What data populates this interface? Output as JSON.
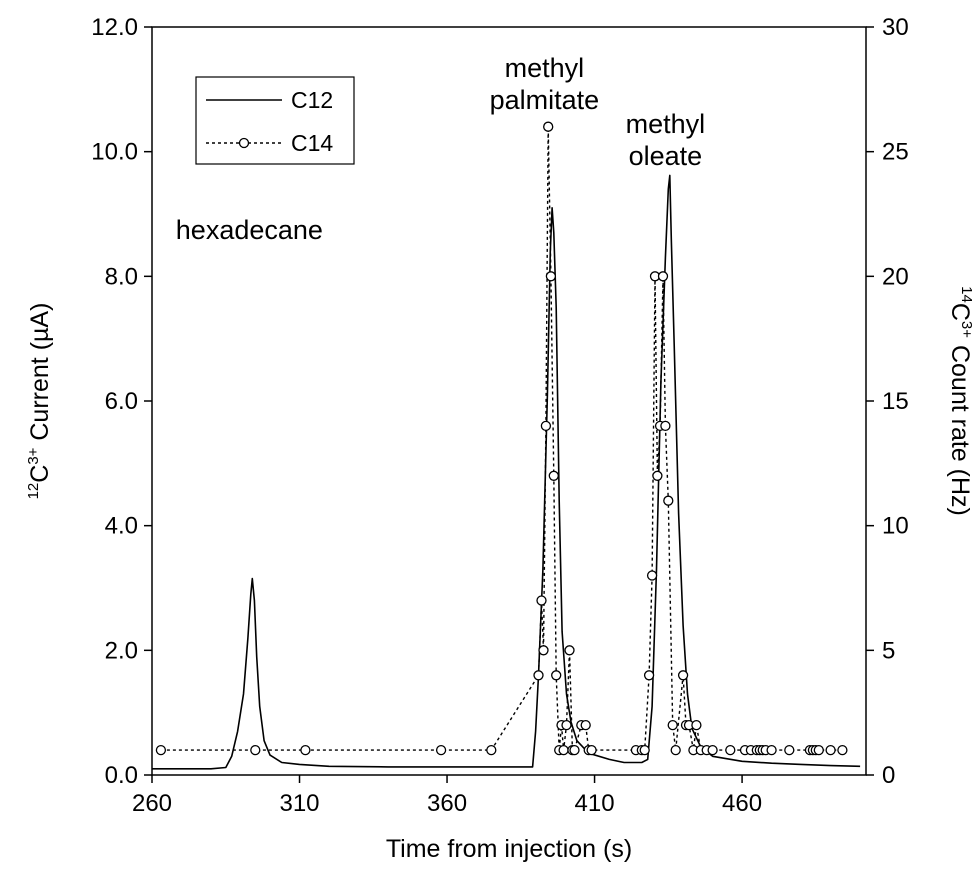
{
  "chart_data": {
    "type": "line",
    "x_axis": {
      "label": "Time from injection (s)",
      "range": [
        260,
        502
      ],
      "ticks": [
        260,
        310,
        360,
        410,
        460
      ],
      "tick_labels": [
        "260",
        "310",
        "360",
        "410",
        "460"
      ]
    },
    "y_left_axis": {
      "label_parts": {
        "sup_mass": "12",
        "element": "C",
        "sup_charge": "3+",
        "rest": " Current (µA)"
      },
      "range": [
        0,
        12
      ],
      "ticks": [
        0,
        2,
        4,
        6,
        8,
        10,
        12
      ],
      "tick_labels": [
        "0.0",
        "2.0",
        "4.0",
        "6.0",
        "8.0",
        "10.0",
        "12.0"
      ]
    },
    "y_right_axis": {
      "label_parts": {
        "sup_mass": "14",
        "element": "C",
        "sup_charge": "3+",
        "rest": " Count rate (Hz)"
      },
      "range": [
        0,
        30
      ],
      "ticks": [
        0,
        5,
        10,
        15,
        20,
        25,
        30
      ],
      "tick_labels": [
        "0",
        "5",
        "10",
        "15",
        "20",
        "25",
        "30"
      ]
    },
    "legend": {
      "position": "top-left",
      "entries": [
        {
          "label": "C12",
          "style": "solid line"
        },
        {
          "label": "C14",
          "style": "dotted line with circle markers"
        }
      ]
    },
    "annotations": [
      {
        "lines": [
          "hexadecane"
        ],
        "x": 293,
        "y": 8.6
      },
      {
        "lines": [
          "methyl",
          "palmitate"
        ],
        "x": 393,
        "y": 11.2
      },
      {
        "lines": [
          "methyl",
          "oleate"
        ],
        "x": 434,
        "y": 10.3
      }
    ],
    "series": [
      {
        "name": "C12",
        "axis": "left",
        "points": [
          [
            260,
            0.1
          ],
          [
            280,
            0.1
          ],
          [
            285,
            0.12
          ],
          [
            287,
            0.3
          ],
          [
            289,
            0.7
          ],
          [
            291,
            1.3
          ],
          [
            292.5,
            2.2
          ],
          [
            293.5,
            2.9
          ],
          [
            294,
            3.15
          ],
          [
            294.7,
            2.8
          ],
          [
            295.5,
            1.9
          ],
          [
            296.5,
            1.1
          ],
          [
            298,
            0.55
          ],
          [
            300,
            0.32
          ],
          [
            304,
            0.2
          ],
          [
            310,
            0.17
          ],
          [
            320,
            0.14
          ],
          [
            340,
            0.13
          ],
          [
            380,
            0.13
          ],
          [
            389,
            0.13
          ],
          [
            390,
            0.7
          ],
          [
            391,
            1.6
          ],
          [
            392.5,
            3.3
          ],
          [
            394,
            6.1
          ],
          [
            395,
            8.4
          ],
          [
            395.6,
            9.1
          ],
          [
            396.2,
            8.7
          ],
          [
            397,
            7.5
          ],
          [
            398,
            4.4
          ],
          [
            399,
            2.3
          ],
          [
            400.5,
            1.3
          ],
          [
            402,
            0.85
          ],
          [
            404,
            0.55
          ],
          [
            408,
            0.35
          ],
          [
            415,
            0.25
          ],
          [
            420,
            0.2
          ],
          [
            426,
            0.2
          ],
          [
            428,
            0.25
          ],
          [
            429.5,
            1.1
          ],
          [
            431,
            3.3
          ],
          [
            432.5,
            6.3
          ],
          [
            434,
            8.3
          ],
          [
            435,
            9.4
          ],
          [
            435.5,
            9.62
          ],
          [
            436,
            8.6
          ],
          [
            437,
            6.9
          ],
          [
            438.5,
            4.2
          ],
          [
            440,
            2.4
          ],
          [
            441.5,
            1.3
          ],
          [
            443,
            0.75
          ],
          [
            446,
            0.45
          ],
          [
            450,
            0.3
          ],
          [
            460,
            0.22
          ],
          [
            470,
            0.19
          ],
          [
            480,
            0.17
          ],
          [
            490,
            0.15
          ],
          [
            500,
            0.14
          ]
        ]
      },
      {
        "name": "C14",
        "axis": "right",
        "points": [
          [
            263,
            1
          ],
          [
            295,
            1
          ],
          [
            312,
            1
          ],
          [
            358,
            1
          ],
          [
            375,
            1
          ],
          [
            391,
            4
          ],
          [
            392,
            7
          ],
          [
            392.7,
            5
          ],
          [
            393.5,
            14
          ],
          [
            394.3,
            26
          ],
          [
            395.2,
            20
          ],
          [
            396.2,
            12
          ],
          [
            397,
            4
          ],
          [
            398,
            1
          ],
          [
            398.8,
            2
          ],
          [
            399.5,
            1
          ],
          [
            400.5,
            2
          ],
          [
            401.5,
            5
          ],
          [
            402.5,
            1
          ],
          [
            403.2,
            1
          ],
          [
            405.5,
            2
          ],
          [
            407,
            2
          ],
          [
            408,
            1
          ],
          [
            409,
            1
          ],
          [
            424,
            1
          ],
          [
            426,
            1
          ],
          [
            427,
            1
          ],
          [
            428.5,
            4
          ],
          [
            429.5,
            8
          ],
          [
            430.5,
            20
          ],
          [
            431.3,
            12
          ],
          [
            432.2,
            14
          ],
          [
            433.2,
            20
          ],
          [
            434,
            14
          ],
          [
            435,
            11
          ],
          [
            436.5,
            2
          ],
          [
            437.5,
            1
          ],
          [
            440,
            4
          ],
          [
            441,
            2
          ],
          [
            442,
            2
          ],
          [
            443.5,
            1
          ],
          [
            444.5,
            2
          ],
          [
            446,
            1
          ],
          [
            448,
            1
          ],
          [
            450,
            1
          ],
          [
            456,
            1
          ],
          [
            461,
            1
          ],
          [
            463,
            1
          ],
          [
            465,
            1
          ],
          [
            466,
            1
          ],
          [
            467,
            1
          ],
          [
            468,
            1
          ],
          [
            470,
            1
          ],
          [
            476,
            1
          ],
          [
            483,
            1
          ],
          [
            484,
            1
          ],
          [
            485,
            1
          ],
          [
            486,
            1
          ],
          [
            490,
            1
          ],
          [
            494,
            1
          ]
        ]
      }
    ]
  }
}
